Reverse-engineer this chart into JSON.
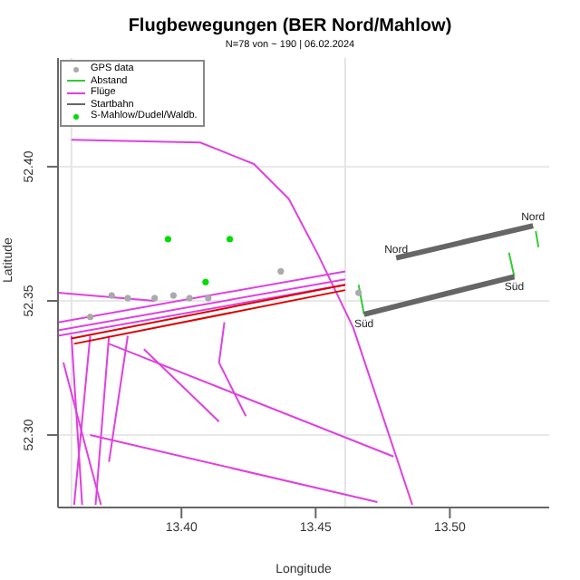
{
  "chart_data": {
    "type": "line",
    "title": "Flugbewegungen (BER Nord/Mahlow)",
    "subtitle": "N=78 von ~ 190 | 06.02.2024",
    "xlabel": "Longitude",
    "ylabel": "Latitude",
    "xlim": [
      13.354,
      13.537
    ],
    "ylim": [
      52.273,
      52.4405
    ],
    "xticks": [
      {
        "value": 13.4,
        "label": "13.40"
      },
      {
        "value": 13.45,
        "label": "13.45"
      },
      {
        "value": 13.5,
        "label": "13.50"
      }
    ],
    "yticks": [
      {
        "value": 52.3,
        "label": "52.30"
      },
      {
        "value": 52.35,
        "label": "52.35"
      },
      {
        "value": 52.4,
        "label": "52.40"
      }
    ],
    "grid": "y",
    "legend": "top left",
    "ref_lines": [
      {
        "axis": "x",
        "value": 13.359,
        "color": "#e4e4e4"
      },
      {
        "axis": "x",
        "value": 13.461,
        "color": "#e4e4e4"
      }
    ],
    "annotations": [
      {
        "text": "Nord",
        "x": 13.48,
        "y": 52.366
      },
      {
        "text": "Nord",
        "x": 13.531,
        "y": 52.378
      },
      {
        "text": "Süd",
        "x": 13.468,
        "y": 52.345
      },
      {
        "text": "Süd",
        "x": 13.524,
        "y": 52.359
      }
    ],
    "series": [
      {
        "name": "GPS data",
        "type": "scatter",
        "marker": "circle",
        "color": "#aaaaaa",
        "x": [
          13.374,
          13.38,
          13.39,
          13.397,
          13.403,
          13.41,
          13.366,
          13.437,
          13.466
        ],
        "values": [
          52.352,
          52.351,
          52.351,
          52.352,
          52.351,
          52.351,
          52.344,
          52.361,
          52.353
        ]
      },
      {
        "name": "Abstand",
        "color": "#33cc33",
        "x": [
          13.466,
          13.468
        ],
        "values": [
          52.356,
          52.345
        ]
      },
      {
        "color": "#33cc33",
        "x": [
          13.532,
          13.533
        ],
        "values": [
          52.376,
          52.37
        ]
      },
      {
        "color": "#33cc33",
        "x": [
          13.522,
          13.524
        ],
        "values": [
          52.368,
          52.359
        ]
      },
      {
        "name": "Flüge",
        "color": "#e040e0",
        "x": [
          13.354,
          13.461
        ],
        "values": [
          52.342,
          52.361
        ]
      },
      {
        "color": "#e040e0",
        "x": [
          13.354,
          13.461
        ],
        "values": [
          52.339,
          52.358
        ]
      },
      {
        "color": "#e040e0",
        "x": [
          13.354,
          13.461
        ],
        "values": [
          52.337,
          52.356
        ]
      },
      {
        "color": "#e040e0",
        "x": [
          13.359,
          13.407,
          13.427,
          13.44,
          13.451,
          13.464,
          13.486
        ],
        "values": [
          52.41,
          52.409,
          52.401,
          52.388,
          52.367,
          52.34,
          52.274
        ]
      },
      {
        "color": "#e040e0",
        "x": [
          13.366,
          13.473
        ],
        "values": [
          52.3,
          52.275
        ]
      },
      {
        "color": "#e040e0",
        "x": [
          13.373,
          13.479
        ],
        "values": [
          52.334,
          52.292
        ]
      },
      {
        "color": "#e040e0",
        "x": [
          13.416,
          13.414,
          13.424
        ],
        "values": [
          52.342,
          52.327,
          52.307
        ]
      },
      {
        "color": "#e040e0",
        "x": [
          13.386,
          13.414
        ],
        "values": [
          52.332,
          52.305
        ]
      },
      {
        "color": "#e040e0",
        "x": [
          13.359,
          13.363
        ],
        "values": [
          52.337,
          52.274
        ]
      },
      {
        "color": "#e040e0",
        "x": [
          13.366,
          13.36
        ],
        "values": [
          52.337,
          52.274
        ]
      },
      {
        "color": "#e040e0",
        "x": [
          13.373,
          13.368
        ],
        "values": [
          52.337,
          52.274
        ]
      },
      {
        "color": "#e040e0",
        "x": [
          13.38,
          13.373
        ],
        "values": [
          52.337,
          52.29
        ]
      },
      {
        "color": "#e040e0",
        "x": [
          13.356,
          13.37
        ],
        "values": [
          52.327,
          52.274
        ]
      },
      {
        "color": "#e040e0",
        "x": [
          13.354,
          13.39
        ],
        "values": [
          52.353,
          52.35
        ]
      },
      {
        "color": "#dd0000",
        "x": [
          13.359,
          13.461
        ],
        "values": [
          52.336,
          52.356
        ]
      },
      {
        "color": "#dd0000",
        "x": [
          13.36,
          13.461
        ],
        "values": [
          52.334,
          52.354
        ]
      },
      {
        "name": "Startbahn",
        "color": "#666666",
        "x": [
          13.48,
          13.531
        ],
        "values": [
          52.366,
          52.378
        ]
      },
      {
        "color": "#666666",
        "x": [
          13.468,
          13.524
        ],
        "values": [
          52.345,
          52.359
        ]
      },
      {
        "name": "S-Mahlow/Dudel/Waldb.",
        "type": "scatter",
        "marker": "circle",
        "color": "#00dd00",
        "x": [
          13.395,
          13.418,
          13.409
        ],
        "values": [
          52.373,
          52.373,
          52.357
        ]
      }
    ]
  }
}
